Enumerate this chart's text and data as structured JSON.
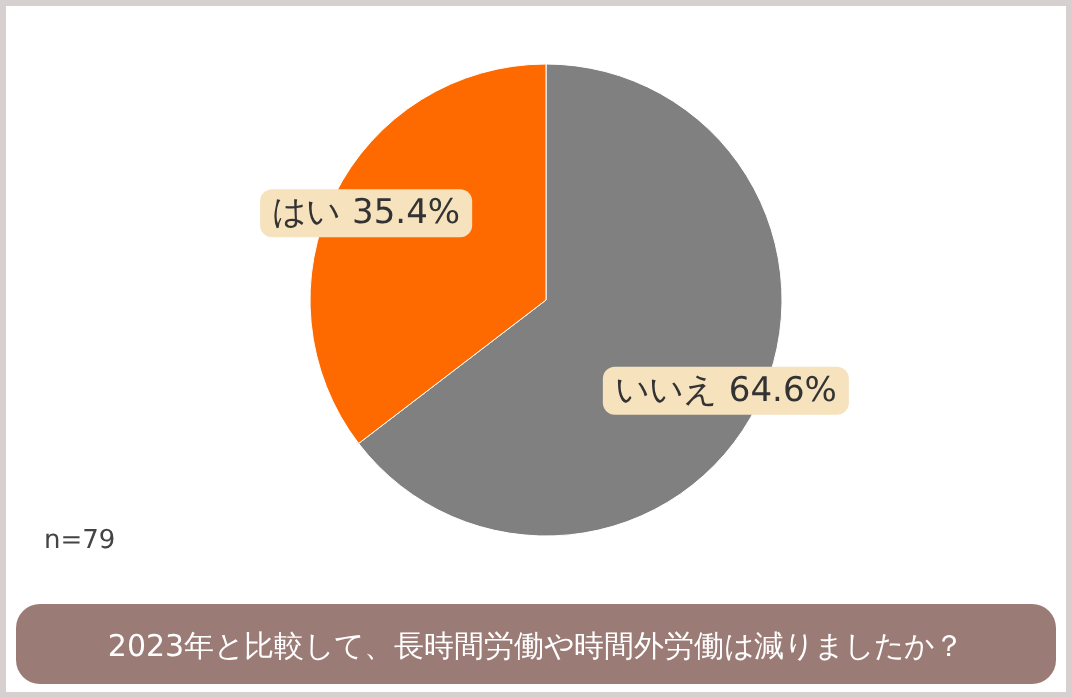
{
  "chart_data": {
    "type": "pie",
    "title": "2023年と比較して、長時間労働や時間外労働は減りましたか？",
    "categories": [
      "いいえ",
      "はい"
    ],
    "values": [
      64.6,
      35.4
    ],
    "colors": [
      "#808080",
      "#ff6a00"
    ],
    "value_labels": [
      "64.6%",
      "35.4%"
    ],
    "annotations": [
      "n=79"
    ]
  }
}
